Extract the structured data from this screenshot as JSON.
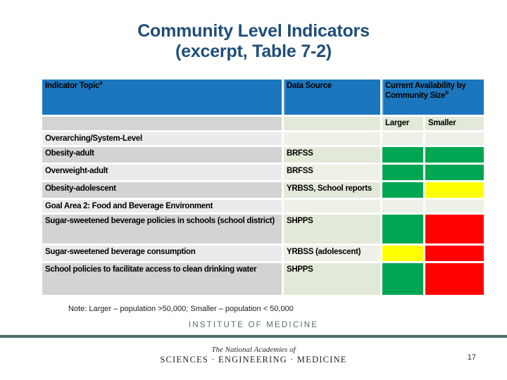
{
  "slide": {
    "title_line1": "Community Level Indicators",
    "title_line2": "(excerpt, Table 7-2)",
    "note": "Note: Larger – population >50,000; Smaller – population < 50,000",
    "institute": "INSTITUTE OF MEDICINE",
    "academies_line1": "The National Academies of",
    "academies_line2": "SCIENCES · ENGINEERING · MEDICINE",
    "page_number": "17"
  },
  "table": {
    "headers": {
      "indicator_topic": "Indicator Topic",
      "indicator_topic_sup": "a",
      "data_source": "Data Source",
      "availability": "Current Availability  by Community Size",
      "availability_sup": "b",
      "larger": "Larger",
      "smaller": "Smaller"
    },
    "rows": [
      {
        "type": "section",
        "label": "Overarching/System-Level",
        "source": "",
        "larger": "none",
        "smaller": "none"
      },
      {
        "type": "item",
        "label": "Obesity-adult",
        "source": "BRFSS",
        "larger": "green",
        "smaller": "green"
      },
      {
        "type": "item",
        "label": "Overweight-adult",
        "source": "BRFSS",
        "larger": "green",
        "smaller": "green"
      },
      {
        "type": "item",
        "label": "Obesity-adolescent",
        "source": "YRBSS, School reports",
        "larger": "green",
        "smaller": "yellow"
      },
      {
        "type": "section",
        "label": "Goal Area 2: Food and Beverage Environment",
        "source": "",
        "larger": "none",
        "smaller": "none"
      },
      {
        "type": "item",
        "label": "Sugar-sweetened beverage policies in schools (school district)",
        "source": "SHPPS",
        "larger": "green",
        "smaller": "red"
      },
      {
        "type": "item",
        "label": "Sugar-sweetened beverage consumption",
        "source": "YRBSS (adolescent)",
        "larger": "yellow",
        "smaller": "red"
      },
      {
        "type": "item",
        "label": "School policies to facilitate access to clean drinking water",
        "source": "SHPPS",
        "larger": "green",
        "smaller": "red"
      }
    ],
    "legend_meaning": {
      "green": "green",
      "yellow": "yellow",
      "red": "red"
    }
  },
  "colors": {
    "green": "#00a651",
    "yellow": "#ffff00",
    "red": "#ff0000",
    "header_blue": "#1b76bd",
    "header_text_navy": "#17375d",
    "title_blue": "#1f4e79",
    "rule_teal": "#4a6e68",
    "institute_teal": "#52706c"
  }
}
